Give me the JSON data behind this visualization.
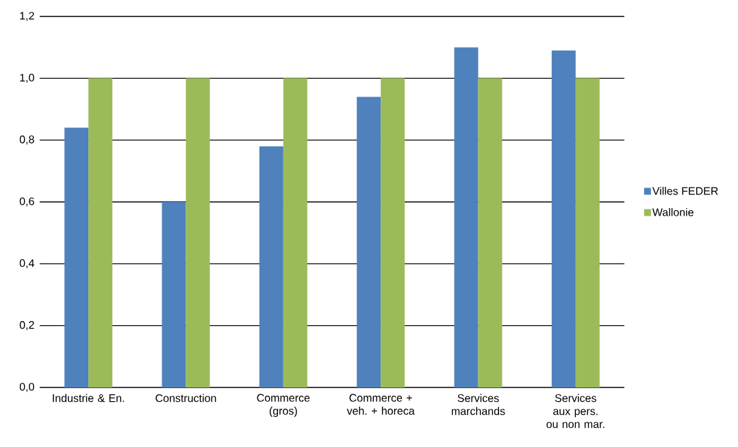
{
  "chart_data": {
    "type": "bar",
    "categories": [
      "Industrie & En.",
      "Construction",
      "Commerce (gros)",
      "Commerce + veh. + horeca",
      "Services marchands",
      "Services aux pers. ou non mar."
    ],
    "series": [
      {
        "name": "Villes FEDER",
        "color": "#4f81bd",
        "values": [
          0.84,
          0.6,
          0.78,
          0.94,
          1.1,
          1.09
        ]
      },
      {
        "name": "Wallonie",
        "color": "#9bbb59",
        "values": [
          1.0,
          1.0,
          1.0,
          1.0,
          1.0,
          1.0
        ]
      }
    ],
    "ylim": [
      0,
      1.2
    ],
    "yticks": [
      {
        "value": 0,
        "label": "0,0"
      },
      {
        "value": 0.2,
        "label": "0,2"
      },
      {
        "value": 0.4,
        "label": "0,4"
      },
      {
        "value": 0.6,
        "label": "0,6"
      },
      {
        "value": 0.8,
        "label": "0,8"
      },
      {
        "value": 1.0,
        "label": "1,0"
      },
      {
        "value": 1.2,
        "label": "1,2"
      }
    ],
    "grid": "y",
    "legend": "right"
  }
}
